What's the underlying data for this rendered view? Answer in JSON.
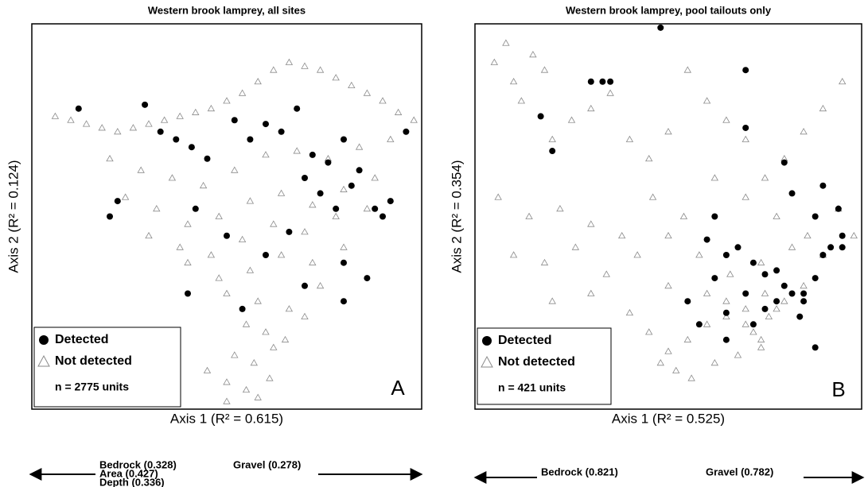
{
  "chart_data": [
    {
      "type": "scatter",
      "title": "Western brook lamprey, all sites",
      "xlabel": "Axis 1 (R² = 0.615)",
      "ylabel": "Axis 2 (R² = 0.124)",
      "panel_label": "A",
      "note": "n = 2775 units",
      "left_arrow_labels": [
        "Bedrock (0.328)",
        "Area (0.427)",
        "Depth (0.336)"
      ],
      "right_arrow_labels": [
        "Gravel (0.278)"
      ],
      "series": [
        {
          "name": "Not detected",
          "color": "#8a8a8a",
          "marker": "triangle",
          "x": [
            6,
            10,
            14,
            18,
            22,
            26,
            30,
            34,
            38,
            42,
            46,
            50,
            54,
            58,
            62,
            66,
            70,
            74,
            78,
            82,
            86,
            90,
            94,
            98,
            20,
            28,
            36,
            44,
            52,
            60,
            68,
            76,
            84,
            92,
            24,
            32,
            40,
            48,
            56,
            64,
            72,
            80,
            88,
            30,
            38,
            46,
            54,
            62,
            70,
            78,
            86,
            40,
            48,
            56,
            64,
            72,
            80,
            50,
            58,
            66,
            74,
            55,
            60,
            65,
            70,
            52,
            57,
            62,
            45,
            50,
            55,
            58,
            61,
            50
          ],
          "y": [
            24,
            25,
            26,
            27,
            28,
            27,
            26,
            25,
            24,
            23,
            22,
            20,
            18,
            15,
            12,
            10,
            11,
            12,
            14,
            16,
            18,
            20,
            23,
            25,
            35,
            38,
            40,
            42,
            38,
            34,
            33,
            35,
            32,
            30,
            45,
            48,
            52,
            50,
            46,
            44,
            47,
            43,
            40,
            55,
            58,
            60,
            56,
            52,
            54,
            50,
            48,
            62,
            66,
            64,
            60,
            62,
            58,
            70,
            72,
            74,
            68,
            78,
            80,
            82,
            76,
            86,
            88,
            84,
            90,
            93,
            95,
            97,
            92,
            98
          ]
        },
        {
          "name": "Detected",
          "color": "#000000",
          "marker": "circle",
          "x": [
            12,
            29,
            33,
            37,
            41,
            45,
            52,
            56,
            60,
            64,
            68,
            72,
            76,
            80,
            84,
            88,
            90,
            92,
            70,
            74,
            78,
            82,
            20,
            42,
            50,
            60,
            66,
            80,
            86,
            40,
            54,
            70,
            80,
            22,
            96
          ],
          "y": [
            22,
            21,
            28,
            30,
            32,
            35,
            25,
            30,
            26,
            28,
            22,
            34,
            36,
            30,
            38,
            48,
            50,
            46,
            40,
            44,
            48,
            42,
            50,
            48,
            55,
            60,
            54,
            62,
            66,
            70,
            74,
            68,
            72,
            46,
            28
          ]
        }
      ]
    },
    {
      "type": "scatter",
      "title": "Western brook lamprey, pool tailouts only",
      "xlabel": "Axis 1 (R² = 0.525)",
      "ylabel": "Axis 2 (R² = 0.354)",
      "panel_label": "B",
      "note": "n = 421 units",
      "left_arrow_labels": [
        "Bedrock (0.821)"
      ],
      "right_arrow_labels": [
        "Gravel (0.782)"
      ],
      "series": [
        {
          "name": "Not detected",
          "color": "#8a8a8a",
          "marker": "triangle",
          "x": [
            5,
            8,
            10,
            12,
            15,
            18,
            20,
            25,
            30,
            35,
            40,
            45,
            50,
            55,
            60,
            65,
            70,
            75,
            80,
            85,
            90,
            95,
            6,
            14,
            22,
            30,
            38,
            46,
            54,
            62,
            70,
            78,
            86,
            94,
            10,
            18,
            26,
            34,
            42,
            50,
            58,
            66,
            74,
            82,
            90,
            98,
            20,
            30,
            40,
            50,
            60,
            65,
            70,
            75,
            80,
            85,
            45,
            50,
            55,
            60,
            65,
            70,
            72,
            74,
            76,
            78,
            48,
            52,
            56,
            62,
            68,
            74
          ],
          "y": [
            10,
            5,
            15,
            20,
            8,
            12,
            30,
            25,
            22,
            18,
            30,
            35,
            28,
            12,
            20,
            25,
            30,
            40,
            35,
            28,
            22,
            15,
            45,
            50,
            48,
            52,
            55,
            45,
            50,
            40,
            45,
            50,
            55,
            48,
            60,
            62,
            58,
            65,
            60,
            55,
            60,
            65,
            62,
            58,
            60,
            55,
            72,
            70,
            75,
            68,
            70,
            72,
            74,
            70,
            72,
            68,
            80,
            85,
            82,
            78,
            76,
            78,
            80,
            82,
            76,
            74,
            88,
            90,
            92,
            88,
            86,
            84
          ]
        },
        {
          "name": "Detected",
          "color": "#000000",
          "marker": "circle",
          "x": [
            48,
            30,
            33,
            35,
            17,
            20,
            70,
            62,
            70,
            80,
            82,
            90,
            94,
            95,
            92,
            88,
            65,
            68,
            72,
            75,
            78,
            80,
            82,
            85,
            88,
            60,
            62,
            70,
            75,
            78,
            85,
            90,
            95,
            55,
            58,
            65,
            88,
            65,
            72,
            84
          ],
          "y": [
            1,
            15,
            15,
            15,
            24,
            33,
            27,
            50,
            12,
            36,
            44,
            42,
            48,
            55,
            58,
            50,
            60,
            58,
            62,
            65,
            64,
            68,
            70,
            72,
            66,
            56,
            66,
            70,
            74,
            72,
            70,
            60,
            58,
            72,
            78,
            82,
            84,
            75,
            78,
            76
          ]
        }
      ]
    }
  ]
}
